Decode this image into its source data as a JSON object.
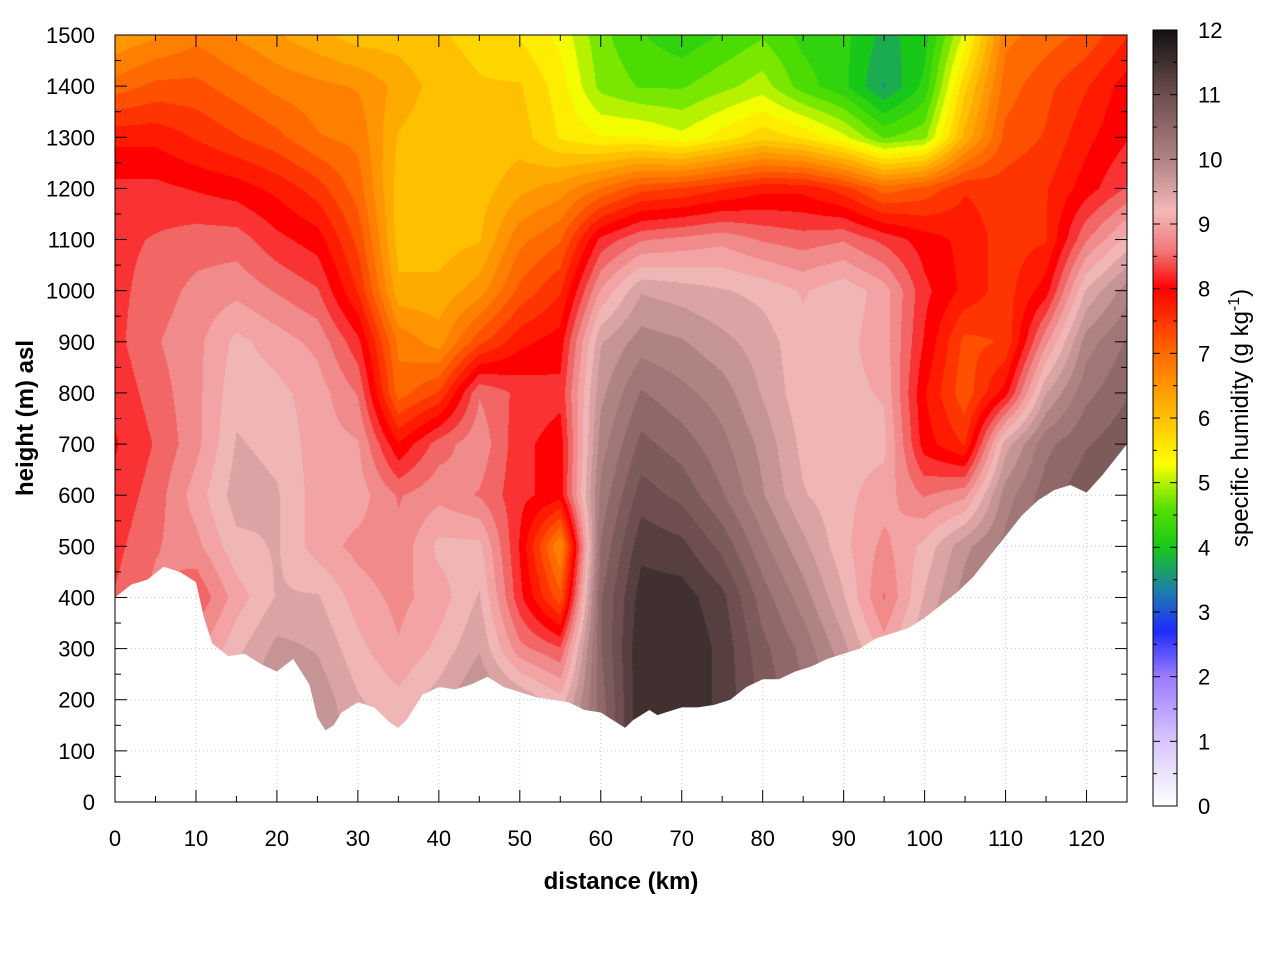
{
  "chart_data": {
    "type": "heatmap",
    "title": "",
    "xlabel": "distance (km)",
    "ylabel": "height (m) asl",
    "xlim": [
      0,
      125
    ],
    "ylim": [
      0,
      1500
    ],
    "x_ticks": [
      0,
      10,
      20,
      30,
      40,
      50,
      60,
      70,
      80,
      90,
      100,
      110,
      120
    ],
    "y_ticks": [
      0,
      100,
      200,
      300,
      400,
      500,
      600,
      700,
      800,
      900,
      1000,
      1100,
      1200,
      1300,
      1400,
      1500
    ],
    "grid": true,
    "colorbar": {
      "label_main": "specific humidity (g kg",
      "label_sup": "-1",
      "label_end": ")",
      "range": [
        0,
        12
      ],
      "ticks": [
        0,
        1,
        2,
        3,
        4,
        5,
        6,
        7,
        8,
        9,
        10,
        11,
        12
      ],
      "palette": [
        {
          "value": 0,
          "color": "#ffffff"
        },
        {
          "value": 1,
          "color": "#d8c6ff"
        },
        {
          "value": 2,
          "color": "#9a7cff"
        },
        {
          "value": 2.7,
          "color": "#1f2bff"
        },
        {
          "value": 3.3,
          "color": "#1f7ab0"
        },
        {
          "value": 4,
          "color": "#18c818"
        },
        {
          "value": 4.6,
          "color": "#55e000"
        },
        {
          "value": 5.3,
          "color": "#ffff00"
        },
        {
          "value": 6,
          "color": "#ffc000"
        },
        {
          "value": 7,
          "color": "#ff6a00"
        },
        {
          "value": 8,
          "color": "#ff0000"
        },
        {
          "value": 8.6,
          "color": "#f07a7a"
        },
        {
          "value": 9.2,
          "color": "#f4b8b8"
        },
        {
          "value": 10,
          "color": "#b08383"
        },
        {
          "value": 11,
          "color": "#6e4e4e"
        },
        {
          "value": 12,
          "color": "#111111"
        }
      ]
    },
    "terrain": {
      "x": [
        0,
        2,
        4,
        6,
        8,
        10,
        11,
        12,
        14,
        16,
        18,
        20,
        22,
        24,
        25,
        26,
        27,
        28,
        30,
        32,
        34,
        35,
        36,
        38,
        40,
        42,
        44,
        46,
        48,
        50,
        52,
        54,
        56,
        58,
        60,
        62,
        63,
        64,
        66,
        67,
        68,
        70,
        72,
        74,
        76,
        78,
        80,
        82,
        84,
        86,
        88,
        90,
        92,
        94,
        96,
        98,
        100,
        102,
        104,
        106,
        108,
        110,
        112,
        114,
        116,
        118,
        120,
        122,
        124,
        125
      ],
      "y": [
        400,
        425,
        435,
        460,
        450,
        430,
        360,
        310,
        285,
        290,
        270,
        255,
        280,
        230,
        165,
        140,
        150,
        175,
        195,
        185,
        155,
        145,
        160,
        210,
        225,
        220,
        230,
        245,
        225,
        215,
        205,
        200,
        195,
        180,
        175,
        155,
        145,
        160,
        180,
        170,
        175,
        185,
        185,
        190,
        200,
        225,
        240,
        240,
        255,
        265,
        280,
        290,
        300,
        320,
        330,
        340,
        360,
        385,
        410,
        440,
        480,
        520,
        560,
        590,
        610,
        620,
        605,
        640,
        680,
        700
      ]
    },
    "z": [
      [
        9.7,
        9.8,
        9.9,
        10.0,
        10.0,
        9.9,
        9.6,
        9.4,
        9.8,
        10.2,
        10.0,
        9.6,
        10.5,
        11.6,
        11.5,
        11.2,
        10.7,
        10.5,
        10.3,
        10.4,
        10.8,
        10.9,
        11.0,
        11.2,
        11.4,
        11.7
      ],
      [
        9.8,
        9.7,
        9.6,
        9.8,
        9.9,
        9.9,
        9.5,
        9.3,
        9.6,
        10.0,
        9.8,
        9.3,
        10.4,
        11.6,
        11.6,
        11.3,
        10.8,
        10.5,
        10.2,
        10.2,
        10.6,
        10.8,
        11.0,
        11.2,
        11.4,
        11.6
      ],
      [
        9.7,
        9.5,
        9.4,
        9.6,
        9.9,
        9.8,
        9.4,
        9.2,
        9.5,
        9.9,
        9.6,
        9.2,
        10.5,
        11.6,
        11.6,
        11.3,
        10.8,
        10.4,
        10.0,
        9.3,
        10.0,
        10.5,
        10.8,
        11.0,
        11.3,
        11.5
      ],
      [
        8.8,
        9.0,
        8.8,
        9.3,
        9.7,
        9.6,
        9.2,
        8.9,
        9.2,
        9.6,
        8.7,
        8.4,
        10.6,
        11.6,
        11.6,
        11.3,
        10.7,
        10.3,
        9.7,
        9.0,
        9.6,
        10.2,
        10.6,
        10.9,
        11.2,
        11.3
      ],
      [
        8.4,
        8.7,
        8.4,
        9.0,
        9.4,
        9.4,
        9.0,
        8.8,
        9.0,
        9.4,
        8.2,
        7.2,
        10.6,
        11.5,
        11.5,
        11.2,
        10.5,
        10.0,
        9.4,
        8.6,
        9.4,
        10.0,
        10.4,
        10.7,
        11.1,
        11.2
      ],
      [
        8.3,
        8.6,
        8.8,
        9.3,
        9.4,
        9.0,
        8.8,
        8.7,
        9.2,
        9.2,
        8.1,
        6.6,
        10.4,
        11.3,
        11.2,
        10.8,
        10.2,
        9.7,
        9.2,
        8.8,
        9.2,
        9.8,
        10.2,
        10.6,
        11.0,
        11.1
      ],
      [
        8.2,
        8.5,
        9.0,
        9.5,
        9.4,
        9.0,
        9.0,
        8.6,
        8.8,
        8.6,
        8.2,
        8.0,
        10.2,
        11.0,
        10.8,
        10.4,
        9.9,
        9.4,
        9.2,
        9.0,
        8.6,
        8.8,
        10.0,
        10.5,
        10.8,
        10.9
      ],
      [
        8.1,
        8.4,
        8.8,
        9.4,
        9.3,
        9.0,
        8.9,
        7.9,
        8.5,
        8.8,
        8.2,
        8.0,
        10.0,
        10.7,
        10.5,
        10.2,
        9.8,
        9.3,
        9.2,
        9.2,
        8.0,
        7.6,
        9.5,
        10.3,
        10.6,
        10.8
      ],
      [
        8.2,
        8.5,
        8.8,
        9.3,
        9.2,
        9.0,
        8.6,
        7.0,
        7.4,
        8.6,
        8.3,
        8.2,
        9.8,
        10.4,
        10.2,
        10.0,
        9.6,
        9.2,
        9.2,
        9.1,
        7.9,
        7.2,
        8.0,
        9.6,
        10.3,
        10.6
      ],
      [
        8.3,
        8.6,
        8.8,
        9.2,
        9.0,
        8.8,
        8.2,
        6.8,
        6.5,
        7.3,
        7.8,
        8.0,
        9.6,
        10.0,
        9.9,
        9.7,
        9.5,
        9.2,
        9.2,
        9.0,
        8.1,
        7.3,
        7.4,
        8.8,
        10.0,
        10.4
      ],
      [
        8.3,
        8.5,
        8.7,
        8.8,
        8.6,
        8.4,
        7.6,
        6.2,
        6.2,
        6.5,
        7.2,
        7.6,
        8.9,
        9.6,
        9.5,
        9.4,
        9.3,
        9.1,
        9.3,
        9.0,
        8.2,
        7.8,
        7.5,
        8.0,
        9.4,
        10.0
      ],
      [
        8.3,
        8.4,
        8.5,
        8.5,
        8.2,
        8.0,
        7.3,
        6.0,
        6.0,
        6.1,
        6.8,
        7.1,
        8.2,
        8.6,
        8.7,
        8.8,
        8.6,
        8.5,
        8.6,
        8.3,
        8.0,
        7.8,
        7.5,
        7.6,
        8.6,
        9.2
      ],
      [
        8.2,
        8.2,
        8.1,
        8.0,
        7.8,
        7.5,
        7.0,
        6.0,
        5.9,
        6.0,
        6.3,
        6.5,
        6.9,
        7.3,
        7.4,
        7.6,
        7.8,
        7.8,
        7.5,
        7.0,
        7.2,
        7.6,
        7.5,
        7.6,
        8.0,
        8.4
      ],
      [
        7.8,
        7.8,
        7.6,
        7.4,
        7.2,
        6.9,
        6.8,
        6.1,
        5.9,
        5.9,
        6.0,
        5.6,
        5.4,
        5.4,
        5.2,
        5.5,
        5.8,
        5.6,
        5.2,
        4.6,
        4.8,
        6.2,
        7.2,
        7.4,
        7.8,
        8.1
      ],
      [
        7.0,
        7.2,
        7.2,
        7.0,
        6.8,
        6.7,
        6.6,
        6.3,
        6.0,
        5.9,
        5.9,
        5.5,
        4.8,
        4.6,
        4.6,
        4.8,
        5.0,
        4.5,
        4.2,
        3.6,
        4.2,
        5.8,
        7.0,
        7.3,
        7.6,
        8.0
      ],
      [
        6.4,
        6.6,
        6.8,
        6.6,
        6.4,
        6.2,
        6.0,
        6.0,
        5.9,
        5.8,
        5.6,
        5.3,
        4.7,
        4.4,
        4.2,
        4.4,
        4.6,
        4.3,
        4.2,
        3.8,
        4.0,
        5.2,
        6.8,
        7.0,
        7.2,
        7.6
      ]
    ]
  }
}
